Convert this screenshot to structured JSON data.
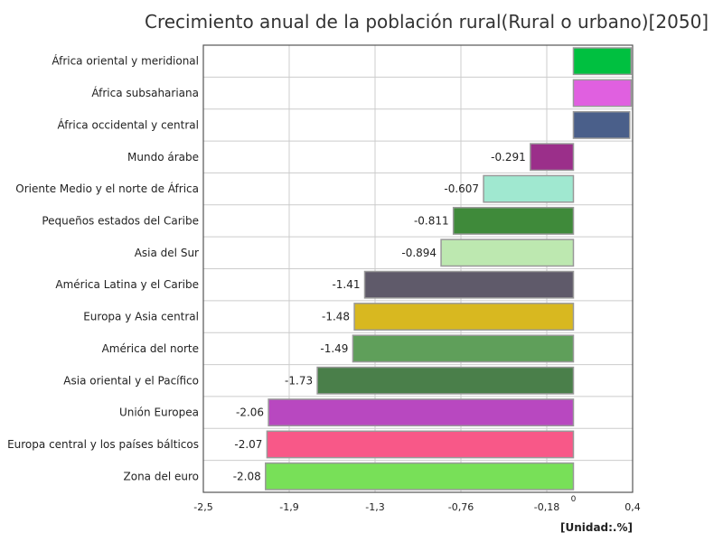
{
  "chart_data": {
    "type": "bar",
    "orientation": "horizontal",
    "title": "Crecimiento anual de la población rural(Rural o urbano)[2050]",
    "unit_label": "[Unidad:.%]",
    "xlim": [
      -2.5,
      0.4
    ],
    "x_ticks": [
      "-2,5",
      "-1,9",
      "-1,3",
      "-0,76",
      "-0,18",
      "0,4"
    ],
    "x_tick_values": [
      -2.5,
      -1.92,
      -1.34,
      -0.76,
      -0.18,
      0.4
    ],
    "zero_label": "0",
    "grid": true,
    "categories": [
      "África oriental y meridional",
      "África subsahariana",
      "África occidental y central",
      "Mundo árabe",
      "Oriente Medio y el norte de África",
      "Pequeños estados del Caribe",
      "Asia del Sur",
      "América Latina y el Caribe",
      "Europa y Asia central",
      "América del norte",
      "Asia oriental y el Pacífico",
      "Unión Europea",
      "Europa central y los países bálticos",
      "Zona del euro"
    ],
    "values": [
      0.39,
      0.39,
      0.38,
      -0.291,
      -0.607,
      -0.811,
      -0.894,
      -1.41,
      -1.48,
      -1.49,
      -1.73,
      -2.06,
      -2.07,
      -2.08
    ],
    "value_labels": [
      "",
      "",
      "",
      "-0.291",
      "-0.607",
      "-0.811",
      "-0.894",
      "-1.41",
      "-1.48",
      "-1.49",
      "-1.73",
      "-2.06",
      "-2.07",
      "-2.08"
    ],
    "colors": [
      "#00c040",
      "#e060e0",
      "#4a5f8a",
      "#9b2f8a",
      "#a0e8d0",
      "#3f8a3a",
      "#bde8b0",
      "#5f5a6a",
      "#d8b820",
      "#5f9f5a",
      "#4a7f4a",
      "#b848c0",
      "#f85888",
      "#78e058"
    ]
  }
}
